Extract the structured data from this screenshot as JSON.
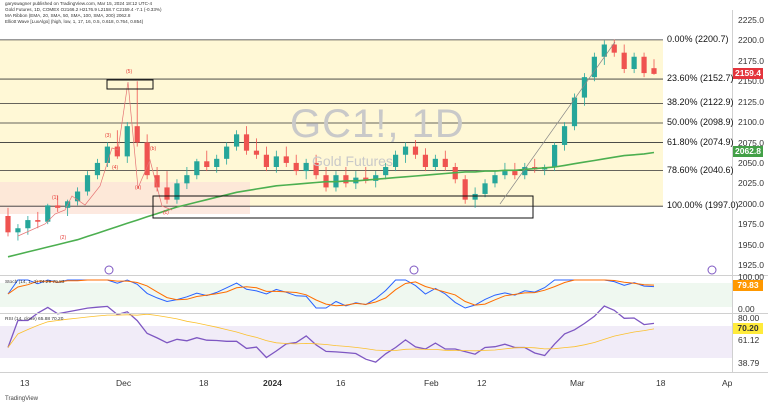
{
  "header": {
    "publish_line": "garyswagner published on TradingView.com, Mar 15, 2024 18:12 UTC-4",
    "symbol_line": "Gold Futures, 1D, COMEX  O2166.2  H2176.9  L2158.7  C2159.4  -7.1 (-0.33%)",
    "ma_ribbon_line": "MA Ribbon (EMA, 20, SMA, 50, SMA, 100, SMA, 200)  2062.8",
    "elliott_line": "Elliott Wave [LuxAlgo] (high, low, 1, 17, 16, 0.5, 0.618, 0.764, 0.854)"
  },
  "watermark": {
    "symbol": "GC1!, 1D",
    "name": "Gold Futures"
  },
  "price_axis": {
    "ticks": [
      "2225.0",
      "2200.0",
      "2175.0",
      "2150.0",
      "2125.0",
      "2100.0",
      "2075.0",
      "2050.0",
      "2025.0",
      "2000.0",
      "1975.0",
      "1950.0",
      "1925.0"
    ],
    "range": [
      1925,
      2225
    ],
    "last_price": "2159.4",
    "last_price_color": "#e3343c",
    "ma_value": "2062.8",
    "ma_color": "#43a047"
  },
  "fib_levels": [
    {
      "label": "0.00% (2200.7)",
      "price": 2200.7
    },
    {
      "label": "23.60% (2152.7)",
      "price": 2152.7
    },
    {
      "label": "38.20% (2122.9)",
      "price": 2122.9
    },
    {
      "label": "50.00% (2098.9)",
      "price": 2098.9
    },
    {
      "label": "61.80% (2074.9)",
      "price": 2074.9
    },
    {
      "label": "78.60% (2040.6)",
      "price": 2040.6
    },
    {
      "label": "100.00% (1997.0)",
      "price": 1997.0
    }
  ],
  "elliott_labels": [
    "(1)",
    "(2)",
    "(3)",
    "(4)",
    "(5)",
    "(a)",
    "(b)",
    "(c)"
  ],
  "stoch": {
    "label": "Stoch (14, 1, 3)  74.29  79.83",
    "ticks": [
      "100.00",
      "0.00"
    ],
    "value_badge": "79.83",
    "badge_color": "#ff9800"
  },
  "rsi": {
    "label": "RSI (14, close)  65.88  70.20",
    "ticks": [
      "80.00",
      "61.12",
      "38.79"
    ],
    "value_badge": "70.20",
    "badge_color": "#ffeb3b"
  },
  "time_axis": [
    "13",
    "Dec",
    "18",
    "2024",
    "16",
    "Feb",
    "12",
    "Mar",
    "18",
    "Ap"
  ],
  "footer": {
    "brand": "TradingView"
  },
  "chart_data": {
    "type": "candlestick",
    "series": [
      {
        "name": "Gold Futures",
        "values": [
          [
            1985,
            1995,
            1960,
            1965
          ],
          [
            1965,
            1975,
            1955,
            1970
          ],
          [
            1970,
            1985,
            1962,
            1980
          ],
          [
            1980,
            1990,
            1970,
            1978
          ],
          [
            1978,
            2000,
            1975,
            1998
          ],
          [
            1998,
            2010,
            1990,
            1995
          ],
          [
            1995,
            2005,
            1985,
            2003
          ],
          [
            2003,
            2020,
            1998,
            2015
          ],
          [
            2015,
            2040,
            2010,
            2035
          ],
          [
            2035,
            2055,
            2030,
            2050
          ],
          [
            2050,
            2075,
            2045,
            2070
          ],
          [
            2070,
            2090,
            2055,
            2058
          ],
          [
            2058,
            2100,
            2050,
            2095
          ],
          [
            2095,
            2150,
            2070,
            2075
          ],
          [
            2075,
            2085,
            2030,
            2035
          ],
          [
            2035,
            2045,
            2015,
            2020
          ],
          [
            2020,
            2040,
            2000,
            2005
          ],
          [
            2005,
            2030,
            2000,
            2025
          ],
          [
            2025,
            2045,
            2018,
            2035
          ],
          [
            2035,
            2055,
            2030,
            2052
          ],
          [
            2052,
            2065,
            2040,
            2045
          ],
          [
            2045,
            2060,
            2038,
            2055
          ],
          [
            2055,
            2075,
            2048,
            2070
          ],
          [
            2070,
            2090,
            2065,
            2085
          ],
          [
            2085,
            2095,
            2060,
            2065
          ],
          [
            2065,
            2080,
            2055,
            2060
          ],
          [
            2060,
            2070,
            2040,
            2045
          ],
          [
            2045,
            2065,
            2038,
            2058
          ],
          [
            2058,
            2070,
            2045,
            2050
          ],
          [
            2050,
            2060,
            2035,
            2040
          ],
          [
            2040,
            2055,
            2030,
            2050
          ],
          [
            2050,
            2060,
            2030,
            2035
          ],
          [
            2035,
            2045,
            2015,
            2020
          ],
          [
            2020,
            2040,
            2015,
            2035
          ],
          [
            2035,
            2045,
            2020,
            2025
          ],
          [
            2025,
            2040,
            2018,
            2032
          ],
          [
            2032,
            2045,
            2025,
            2028
          ],
          [
            2028,
            2040,
            2020,
            2035
          ],
          [
            2035,
            2050,
            2030,
            2045
          ],
          [
            2045,
            2065,
            2040,
            2060
          ],
          [
            2060,
            2075,
            2050,
            2070
          ],
          [
            2070,
            2078,
            2055,
            2060
          ],
          [
            2060,
            2068,
            2040,
            2045
          ],
          [
            2045,
            2060,
            2040,
            2055
          ],
          [
            2055,
            2065,
            2040,
            2045
          ],
          [
            2045,
            2050,
            2025,
            2030
          ],
          [
            2030,
            2035,
            2000,
            2005
          ],
          [
            2005,
            2020,
            1995,
            2012
          ],
          [
            2012,
            2030,
            2008,
            2025
          ],
          [
            2025,
            2040,
            2020,
            2035
          ],
          [
            2035,
            2050,
            2030,
            2040
          ],
          [
            2040,
            2050,
            2030,
            2035
          ],
          [
            2035,
            2050,
            2030,
            2045
          ],
          [
            2045,
            2055,
            2038,
            2042
          ],
          [
            2042,
            2048,
            2035,
            2045
          ],
          [
            2045,
            2075,
            2040,
            2072
          ],
          [
            2072,
            2100,
            2065,
            2095
          ],
          [
            2095,
            2135,
            2090,
            2130
          ],
          [
            2130,
            2160,
            2120,
            2155
          ],
          [
            2155,
            2185,
            2150,
            2180
          ],
          [
            2180,
            2200,
            2170,
            2195
          ],
          [
            2195,
            2201,
            2180,
            2185
          ],
          [
            2185,
            2195,
            2160,
            2165
          ],
          [
            2165,
            2185,
            2160,
            2180
          ],
          [
            2180,
            2185,
            2155,
            2160
          ],
          [
            2166,
            2177,
            2158,
            2159
          ]
        ]
      },
      {
        "name": "MA Ribbon",
        "values": [
          1935,
          1938,
          1941,
          1944,
          1947,
          1950,
          1953,
          1956,
          1960,
          1964,
          1968,
          1972,
          1976,
          1980,
          1984,
          1988,
          1992,
          1996,
          1999,
          2002,
          2005,
          2008,
          2011,
          2014,
          2016,
          2018,
          2020,
          2022,
          2023,
          2024,
          2025,
          2026,
          2027,
          2027,
          2028,
          2028,
          2029,
          2030,
          2031,
          2032,
          2033,
          2034,
          2035,
          2036,
          2037,
          2038,
          2039,
          2039,
          2040,
          2040,
          2041,
          2041,
          2042,
          2043,
          2044,
          2045,
          2047,
          2049,
          2051,
          2053,
          2055,
          2057,
          2059,
          2060,
          2061,
          2062.8
        ]
      }
    ],
    "ylim": [
      1925,
      2225
    ]
  }
}
